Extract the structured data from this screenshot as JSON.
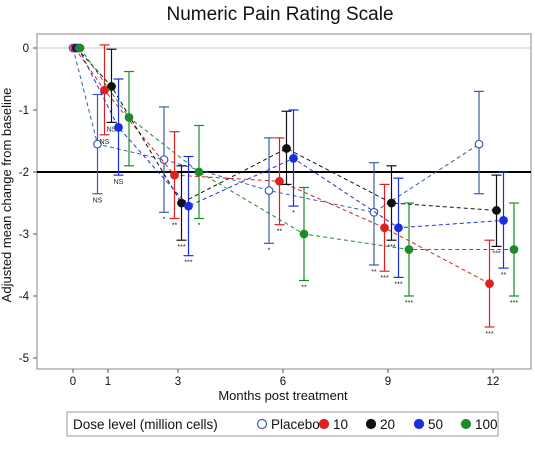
{
  "chart_data": {
    "type": "line",
    "title": "Numeric Pain Rating Scale",
    "xlabel": "Months post treatment",
    "ylabel": "Adjusted mean change from baseline",
    "xticks": [
      0,
      1,
      3,
      6,
      9,
      12
    ],
    "yticks": [
      0,
      -1,
      -2,
      -3,
      -4,
      -5
    ],
    "xlim": [
      -1,
      12.5
    ],
    "ylim": [
      -5.1,
      0.1
    ],
    "reference_line_y": 0,
    "threshold_line_y": -2,
    "legend": {
      "title": "Dose level (million cells)",
      "position": "bottom"
    },
    "series": [
      {
        "name": "Placebo",
        "color": "#3a5fa8",
        "marker": "open-circle",
        "points": [
          {
            "x": 0,
            "y": 0,
            "lo": 0,
            "hi": 0,
            "sig": ""
          },
          {
            "x": 0.7,
            "y": -1.55,
            "lo": -2.35,
            "hi": -0.75,
            "sig": "NS"
          },
          {
            "x": 2.6,
            "y": -1.8,
            "lo": -2.65,
            "hi": -0.95,
            "sig": "*"
          },
          {
            "x": 5.6,
            "y": -2.3,
            "lo": -3.15,
            "hi": -1.45,
            "sig": "*"
          },
          {
            "x": 8.6,
            "y": -2.65,
            "lo": -3.5,
            "hi": -1.85,
            "sig": "**"
          },
          {
            "x": 11.6,
            "y": -1.55,
            "lo": -2.35,
            "hi": -0.7,
            "sig": ""
          }
        ]
      },
      {
        "name": "10",
        "color": "#e02020",
        "marker": "filled-circle",
        "points": [
          {
            "x": 0.05,
            "y": 0,
            "lo": 0,
            "hi": 0,
            "sig": ""
          },
          {
            "x": 0.9,
            "y": -0.68,
            "lo": -1.4,
            "hi": 0.05,
            "sig": "NS"
          },
          {
            "x": 2.9,
            "y": -2.05,
            "lo": -2.75,
            "hi": -1.35,
            "sig": "**"
          },
          {
            "x": 5.9,
            "y": -2.15,
            "lo": -2.85,
            "hi": -1.45,
            "sig": "**"
          },
          {
            "x": 8.9,
            "y": -2.9,
            "lo": -3.6,
            "hi": -2.2,
            "sig": "***"
          },
          {
            "x": 11.9,
            "y": -3.8,
            "lo": -4.5,
            "hi": -3.1,
            "sig": "***"
          }
        ]
      },
      {
        "name": "20",
        "color": "#111111",
        "marker": "filled-circle",
        "points": [
          {
            "x": 0.1,
            "y": 0,
            "lo": 0,
            "hi": 0,
            "sig": ""
          },
          {
            "x": 1.1,
            "y": -0.62,
            "lo": -1.2,
            "hi": -0.02,
            "sig": "NS"
          },
          {
            "x": 3.1,
            "y": -2.5,
            "lo": -3.1,
            "hi": -1.9,
            "sig": "***"
          },
          {
            "x": 6.1,
            "y": -1.62,
            "lo": -2.2,
            "hi": -1.02,
            "sig": ""
          },
          {
            "x": 9.1,
            "y": -2.5,
            "lo": -3.1,
            "hi": -1.9,
            "sig": "***"
          },
          {
            "x": 12.1,
            "y": -2.62,
            "lo": -3.2,
            "hi": -2.05,
            "sig": "***"
          }
        ]
      },
      {
        "name": "50",
        "color": "#1a2fe0",
        "marker": "filled-circle",
        "points": [
          {
            "x": 0.15,
            "y": 0,
            "lo": 0,
            "hi": 0,
            "sig": ""
          },
          {
            "x": 1.3,
            "y": -1.28,
            "lo": -2.05,
            "hi": -0.5,
            "sig": "NS"
          },
          {
            "x": 3.3,
            "y": -2.55,
            "lo": -3.35,
            "hi": -1.75,
            "sig": "***"
          },
          {
            "x": 6.3,
            "y": -1.78,
            "lo": -2.55,
            "hi": -1.0,
            "sig": "*"
          },
          {
            "x": 9.3,
            "y": -2.9,
            "lo": -3.7,
            "hi": -2.1,
            "sig": "***"
          },
          {
            "x": 12.3,
            "y": -2.78,
            "lo": -3.55,
            "hi": -2.0,
            "sig": "**"
          }
        ]
      },
      {
        "name": "100",
        "color": "#1f8a2a",
        "marker": "filled-circle",
        "points": [
          {
            "x": 0.2,
            "y": 0,
            "lo": 0,
            "hi": 0,
            "sig": ""
          },
          {
            "x": 1.6,
            "y": -1.12,
            "lo": -1.9,
            "hi": -0.38,
            "sig": ""
          },
          {
            "x": 3.6,
            "y": -2.0,
            "lo": -2.75,
            "hi": -1.25,
            "sig": "*"
          },
          {
            "x": 6.6,
            "y": -3.0,
            "lo": -3.75,
            "hi": -2.25,
            "sig": "**"
          },
          {
            "x": 9.6,
            "y": -3.25,
            "lo": -4.0,
            "hi": -2.5,
            "sig": "***"
          },
          {
            "x": 12.6,
            "y": -3.25,
            "lo": -4.0,
            "hi": -2.5,
            "sig": "***"
          }
        ]
      }
    ]
  }
}
